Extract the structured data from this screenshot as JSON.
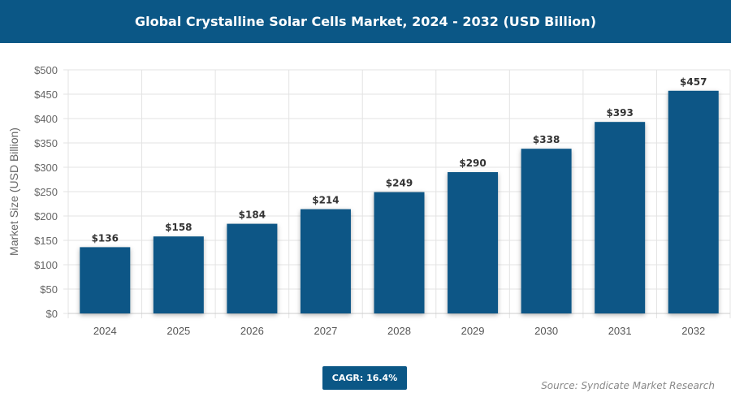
{
  "title": "Global Crystalline Solar Cells Market, 2024 - 2032 (USD Billion)",
  "cagr_label": "CAGR: 16.4%",
  "source": "Source: Syndicate Market Research",
  "colors": {
    "bar": "#0b5786",
    "header": "#0b5786",
    "grid": "#e3e3e3"
  },
  "chart_data": {
    "type": "bar",
    "title": "Global Crystalline Solar Cells Market, 2024 - 2032 (USD Billion)",
    "xlabel": "",
    "ylabel": "Market Size (USD Billion)",
    "categories": [
      "2024",
      "2025",
      "2026",
      "2027",
      "2028",
      "2029",
      "2030",
      "2031",
      "2032"
    ],
    "values": [
      136,
      158,
      184,
      214,
      249,
      290,
      338,
      393,
      457
    ],
    "data_labels": [
      "$136",
      "$158",
      "$184",
      "$214",
      "$249",
      "$290",
      "$338",
      "$393",
      "$457"
    ],
    "ylim": [
      0,
      500
    ],
    "yticks": [
      0,
      50,
      100,
      150,
      200,
      250,
      300,
      350,
      400,
      450,
      500
    ],
    "ytick_labels": [
      "$0",
      "$50",
      "$100",
      "$150",
      "$200",
      "$250",
      "$300",
      "$350",
      "$400",
      "$450",
      "$500"
    ],
    "grid": true,
    "legend": "none"
  }
}
